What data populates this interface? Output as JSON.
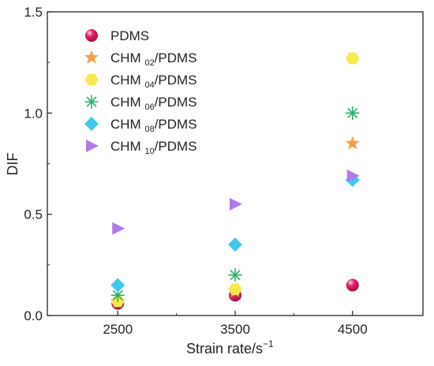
{
  "chart_data": {
    "type": "scatter",
    "xlabel": "Strain rate/s",
    "xlabel_sup": "−1",
    "ylabel": "DIF",
    "xlim": [
      1900,
      5100
    ],
    "ylim": [
      0.0,
      1.5
    ],
    "x_ticks": [
      2500,
      3500,
      4500
    ],
    "y_ticks": [
      0.0,
      0.5,
      1.0,
      1.5
    ],
    "x_tick_labels": [
      "2500",
      "3500",
      "4500"
    ],
    "y_tick_labels": [
      "0.0",
      "0.5",
      "1.0",
      "1.5"
    ],
    "legend_position": "top-left",
    "grid": false,
    "series": [
      {
        "name": "PDMS",
        "name_prefix": "",
        "name_sub": "",
        "name_suffix": "PDMS",
        "marker": "sphere",
        "color": "#e8206a",
        "x": [
          2500,
          3500,
          4500
        ],
        "y": [
          0.06,
          0.1,
          0.15
        ]
      },
      {
        "name": "CHM02/PDMS",
        "name_prefix": "CHM ",
        "name_sub": "02",
        "name_suffix": "/PDMS",
        "marker": "star",
        "color": "#f5a04a",
        "x": [
          2500,
          3500,
          4500
        ],
        "y": [
          0.07,
          0.12,
          0.85
        ]
      },
      {
        "name": "CHM04/PDMS",
        "name_prefix": "CHM ",
        "name_sub": "04",
        "name_suffix": "/PDMS",
        "marker": "hexagon",
        "color": "#f8e84a",
        "x": [
          2500,
          3500,
          4500
        ],
        "y": [
          0.07,
          0.13,
          1.27
        ]
      },
      {
        "name": "CHM06/PDMS",
        "name_prefix": "CHM ",
        "name_sub": "06",
        "name_suffix": "/PDMS",
        "marker": "asterisk",
        "color": "#27b06a",
        "x": [
          2500,
          3500,
          4500
        ],
        "y": [
          0.1,
          0.2,
          1.0
        ]
      },
      {
        "name": "CHM08/PDMS",
        "name_prefix": "CHM ",
        "name_sub": "08",
        "name_suffix": "/PDMS",
        "marker": "diamond",
        "color": "#3ec8ef",
        "x": [
          2500,
          3500,
          4500
        ],
        "y": [
          0.15,
          0.35,
          0.67
        ]
      },
      {
        "name": "CHM10/PDMS",
        "name_prefix": "CHM ",
        "name_sub": "10",
        "name_suffix": "/PDMS",
        "marker": "triangle-right",
        "color": "#b07ae8",
        "x": [
          2500,
          3500,
          4500
        ],
        "y": [
          0.43,
          0.55,
          0.69
        ]
      }
    ]
  }
}
